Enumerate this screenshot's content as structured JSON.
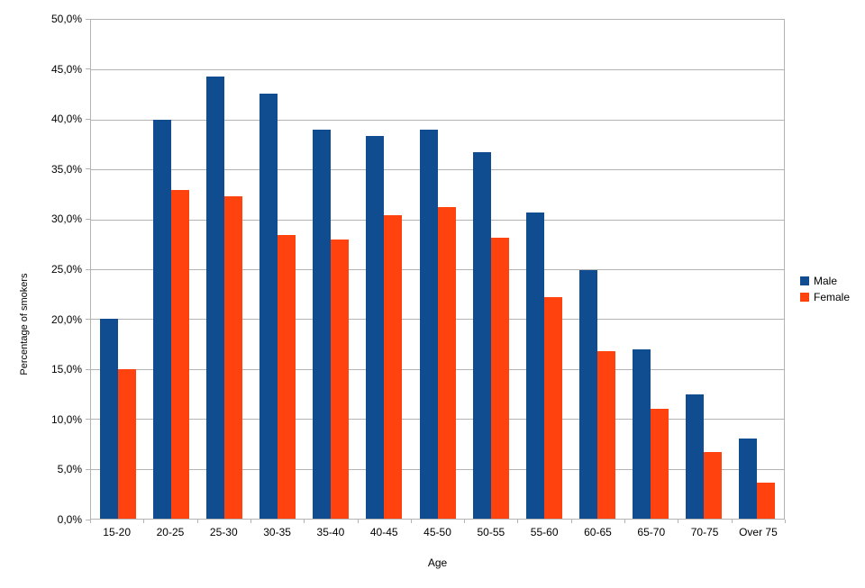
{
  "colors": {
    "male": "#0f4c90",
    "female": "#ff420e",
    "grid": "#b3b3b3",
    "text": "#000000",
    "background": "#ffffff"
  },
  "chart_data": {
    "type": "bar",
    "title": "",
    "xlabel": "Age",
    "ylabel": "Percentage of smokers",
    "categories": [
      "15-20",
      "20-25",
      "25-30",
      "30-35",
      "35-40",
      "40-45",
      "45-50",
      "50-55",
      "55-60",
      "60-65",
      "65-70",
      "70-75",
      "Over 75"
    ],
    "series": [
      {
        "name": "Male",
        "color": "#0f4c90",
        "values": [
          20.0,
          40.0,
          44.3,
          42.6,
          39.0,
          38.4,
          39.0,
          36.7,
          30.7,
          24.9,
          17.0,
          12.5,
          8.0
        ]
      },
      {
        "name": "Female",
        "color": "#ff420e",
        "values": [
          15.0,
          32.9,
          32.3,
          28.4,
          28.0,
          30.4,
          31.2,
          28.2,
          22.2,
          16.8,
          11.0,
          6.7,
          3.6
        ]
      }
    ],
    "ylim": [
      0,
      50
    ],
    "ytick_step": 5,
    "ytick_labels": [
      "0,0%",
      "5,0%",
      "10,0%",
      "15,0%",
      "20,0%",
      "25,0%",
      "30,0%",
      "35,0%",
      "40,0%",
      "45,0%",
      "50,0%"
    ],
    "grid": true,
    "legend_position": "right"
  }
}
